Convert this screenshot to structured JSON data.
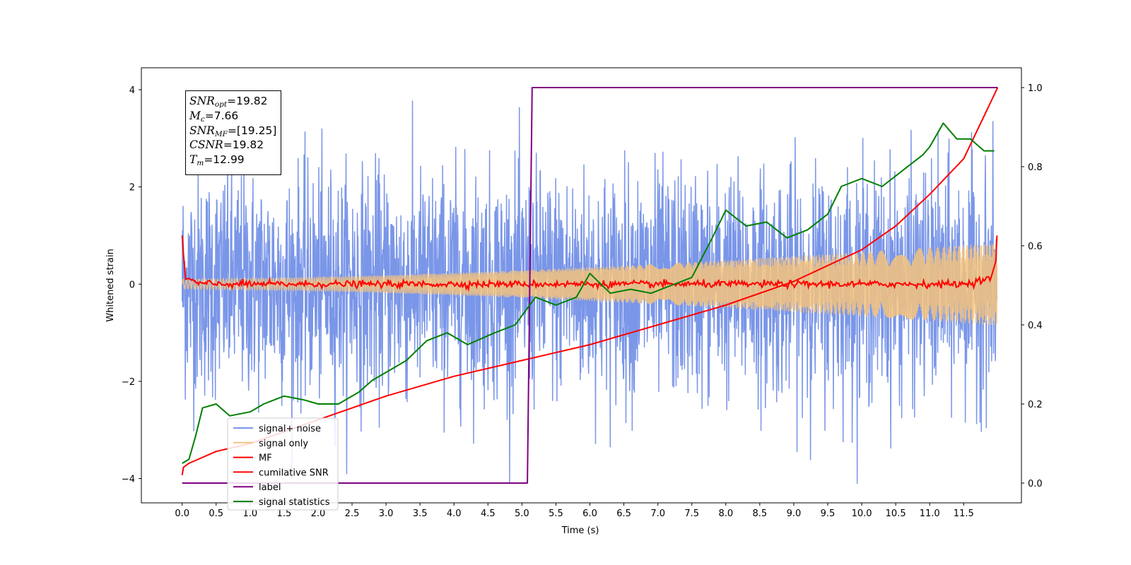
{
  "chart_data": {
    "type": "line",
    "xlabel": "Time (s)",
    "ylabel": "Whitened strain",
    "xlim": [
      -0.6,
      12.35
    ],
    "ylim": [
      -4.5,
      4.45
    ],
    "y2lim": [
      -0.05,
      1.05
    ],
    "x_ticks": [
      "0.0",
      "0.5",
      "1.0",
      "1.5",
      "2.0",
      "2.5",
      "3.0",
      "3.5",
      "4.0",
      "4.5",
      "5.0",
      "5.5",
      "6.0",
      "6.5",
      "7.0",
      "7.5",
      "8.0",
      "8.5",
      "9.0",
      "9.5",
      "10.0",
      "10.5",
      "11.0",
      "11.5"
    ],
    "y_ticks": [
      "4",
      "2",
      "0",
      "−2",
      "−4"
    ],
    "y2_ticks": [
      "1.0",
      "0.8",
      "0.6",
      "0.4",
      "0.2",
      "0.0"
    ],
    "legend_position": "lower-left",
    "series": [
      {
        "name": "signal+ noise",
        "color": "#7a96e8",
        "axis": "left",
        "envelope": {
          "t_range": [
            0,
            11.99
          ],
          "amplitude_upper_approx": 3.4,
          "amplitude_lower_approx": -3.4,
          "peak": 4.02
        }
      },
      {
        "name": "signal only",
        "color": "#f5c37d",
        "axis": "left",
        "envelope": {
          "t_range": [
            0,
            11.99
          ],
          "amplitude_start": 0.1,
          "amplitude_end": 0.85
        }
      },
      {
        "name": "MF",
        "color": "#ff0000",
        "axis": "left",
        "x": [
          0.0,
          0.02,
          0.05,
          0.1,
          0.2,
          0.5,
          1.0,
          2.0,
          4.0,
          6.0,
          8.0,
          10.0,
          11.5,
          11.9,
          11.98,
          11.99
        ],
        "y": [
          1.0,
          0.6,
          0.1,
          0.12,
          0.02,
          0.0,
          0.0,
          0.0,
          0.0,
          0.0,
          0.0,
          0.0,
          0.0,
          0.12,
          0.5,
          1.0
        ]
      },
      {
        "name": "cumilative SNR",
        "color": "#ff0000",
        "axis": "right",
        "x": [
          0.0,
          0.02,
          0.1,
          0.5,
          1.0,
          2.0,
          3.0,
          4.0,
          5.0,
          6.0,
          7.0,
          8.0,
          9.0,
          10.0,
          10.5,
          11.0,
          11.5,
          12.0
        ],
        "y": [
          0.02,
          0.04,
          0.05,
          0.08,
          0.1,
          0.16,
          0.22,
          0.27,
          0.31,
          0.35,
          0.4,
          0.45,
          0.51,
          0.59,
          0.65,
          0.73,
          0.82,
          1.0
        ]
      },
      {
        "name": "label",
        "color": "#800080",
        "axis": "right",
        "x": [
          0.0,
          5.08,
          5.15,
          12.0
        ],
        "y": [
          0.0,
          0.0,
          1.0,
          1.0
        ]
      },
      {
        "name": "signal statistics",
        "color": "#008000",
        "axis": "right",
        "x": [
          0.0,
          0.1,
          0.2,
          0.3,
          0.5,
          0.7,
          1.0,
          1.2,
          1.5,
          1.8,
          2.0,
          2.3,
          2.6,
          2.8,
          3.0,
          3.3,
          3.6,
          3.9,
          4.2,
          4.6,
          4.9,
          5.2,
          5.5,
          5.8,
          6.0,
          6.3,
          6.6,
          6.9,
          7.2,
          7.5,
          7.8,
          8.0,
          8.3,
          8.6,
          8.9,
          9.2,
          9.5,
          9.7,
          10.0,
          10.3,
          10.6,
          10.9,
          11.0,
          11.2,
          11.4,
          11.6,
          11.8,
          11.95
        ],
        "y": [
          0.05,
          0.06,
          0.12,
          0.19,
          0.2,
          0.17,
          0.18,
          0.2,
          0.22,
          0.21,
          0.2,
          0.2,
          0.23,
          0.26,
          0.28,
          0.31,
          0.36,
          0.38,
          0.35,
          0.38,
          0.4,
          0.47,
          0.45,
          0.47,
          0.53,
          0.48,
          0.49,
          0.48,
          0.5,
          0.52,
          0.62,
          0.69,
          0.65,
          0.66,
          0.62,
          0.64,
          0.68,
          0.75,
          0.77,
          0.75,
          0.79,
          0.83,
          0.85,
          0.91,
          0.87,
          0.87,
          0.84,
          0.84
        ]
      }
    ],
    "stats_box": {
      "snr_opt": {
        "symbol": "SNR",
        "sub": "opt",
        "value": "=19.82"
      },
      "mc": {
        "symbol": "M",
        "sub": "c",
        "value": "=7.66"
      },
      "snr_mf": {
        "symbol": "SNR",
        "sub": "MF",
        "value": "=[19.25]"
      },
      "csnr": {
        "symbol": "CSNR",
        "sub": "",
        "value": "=19.82"
      },
      "tm": {
        "symbol": "T",
        "sub": "m",
        "value": "=12.99"
      }
    }
  }
}
